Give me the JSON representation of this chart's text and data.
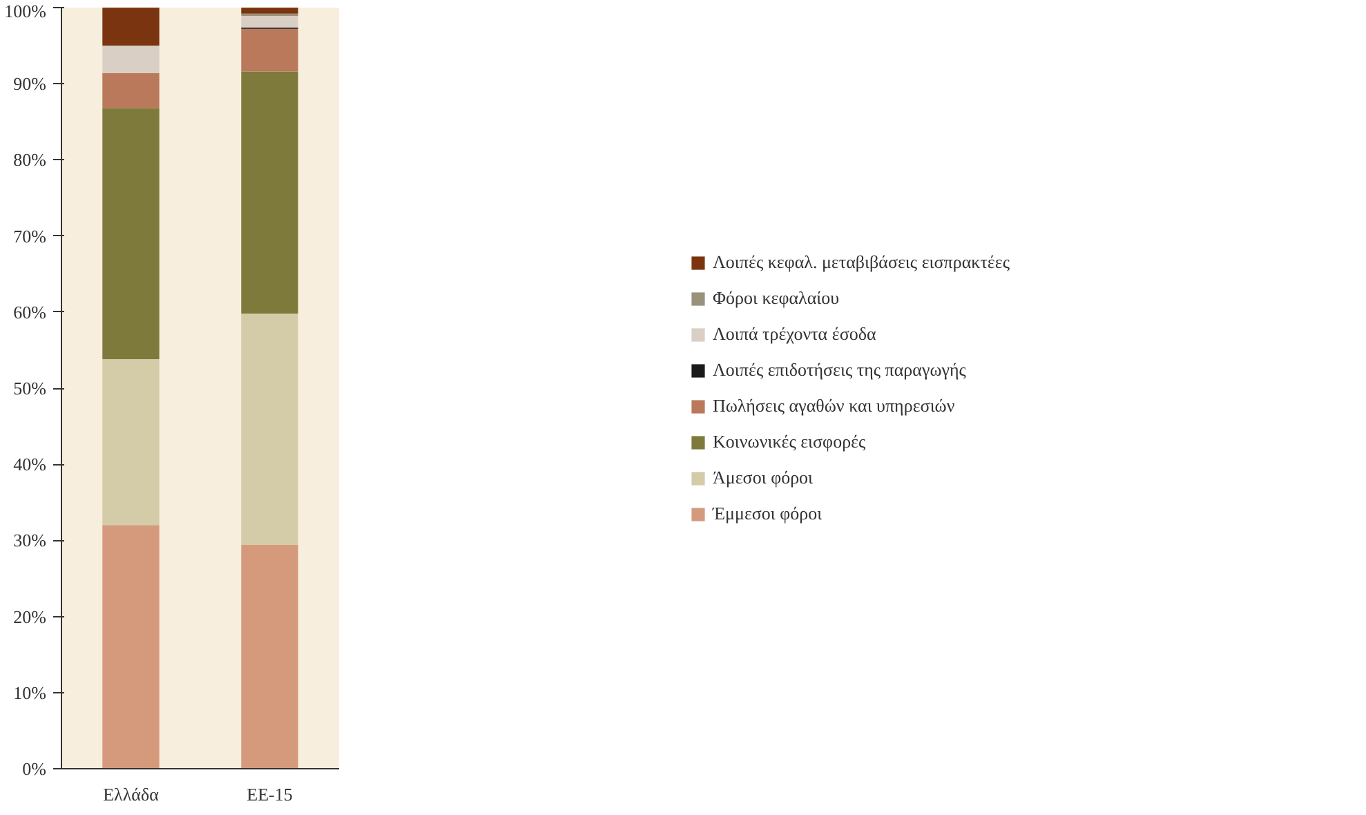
{
  "chart_data": {
    "type": "bar",
    "stacked": true,
    "categories": [
      "Ελλάδα",
      "ΕΕ-15"
    ],
    "series": [
      {
        "name": "Έμμεσοι φόροι",
        "color": "#d59a7c",
        "values": [
          32.0,
          29.4
        ]
      },
      {
        "name": "Άμεσοι φόροι",
        "color": "#d4cba8",
        "values": [
          21.8,
          30.4
        ]
      },
      {
        "name": "Κοινωνικές εισφορές",
        "color": "#7d7a3c",
        "values": [
          33.0,
          31.8
        ]
      },
      {
        "name": "Πωλήσεις αγαθών και υπηρεσιών",
        "color": "#b9795a",
        "values": [
          4.6,
          5.6
        ]
      },
      {
        "name": "Λοιπές επιδοτήσεις της παραγωγής",
        "color": "#1a1a1a",
        "values": [
          0,
          0.2
        ]
      },
      {
        "name": "Λοιπά τρέχοντα έσοδα",
        "color": "#d9cfc4",
        "values": [
          3.6,
          1.5
        ]
      },
      {
        "name": "Φόροι κεφαλαίου",
        "color": "#9a917a",
        "values": [
          0,
          0.3
        ]
      },
      {
        "name": "Λοιπές κεφαλ. μεταβιβάσεις εισπρακτέες",
        "color": "#7a3510",
        "values": [
          5.0,
          0.8
        ]
      }
    ],
    "ylim": [
      0,
      100
    ],
    "yticks": [
      {
        "value": 0,
        "label": "0%"
      },
      {
        "value": 10,
        "label": "10%"
      },
      {
        "value": 20,
        "label": "20%"
      },
      {
        "value": 30,
        "label": "30%"
      },
      {
        "value": 40,
        "label": "40%"
      },
      {
        "value": 50,
        "label": "50%"
      },
      {
        "value": 60,
        "label": "60%"
      },
      {
        "value": 70,
        "label": "70%"
      },
      {
        "value": 80,
        "label": "80%"
      },
      {
        "value": 90,
        "label": "90%"
      },
      {
        "value": 100,
        "label": "100%"
      }
    ],
    "grid": false,
    "legend": "right"
  }
}
